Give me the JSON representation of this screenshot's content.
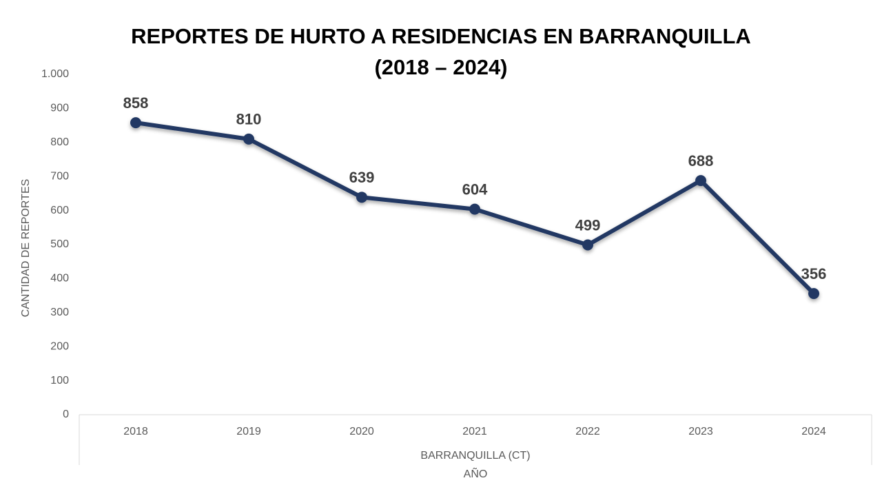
{
  "chart_data": {
    "type": "line",
    "title": "REPORTES DE HURTO A RESIDENCIAS EN BARRANQUILLA",
    "subtitle": "(2018 – 2024)",
    "y_label": "CANTIDAD DE REPORTES",
    "x_group_label": "BARRANQUILLA (CT)",
    "x_label": "AÑO",
    "categories": [
      "2018",
      "2019",
      "2020",
      "2021",
      "2022",
      "2023",
      "2024"
    ],
    "values": [
      858,
      810,
      639,
      604,
      499,
      688,
      356
    ],
    "color": "#203864",
    "ylim": [
      0,
      1000
    ],
    "yticks": [
      0,
      100,
      200,
      300,
      400,
      500,
      600,
      700,
      800,
      900,
      {
        "value": 1000,
        "label": "1.000"
      }
    ],
    "grid": false
  }
}
